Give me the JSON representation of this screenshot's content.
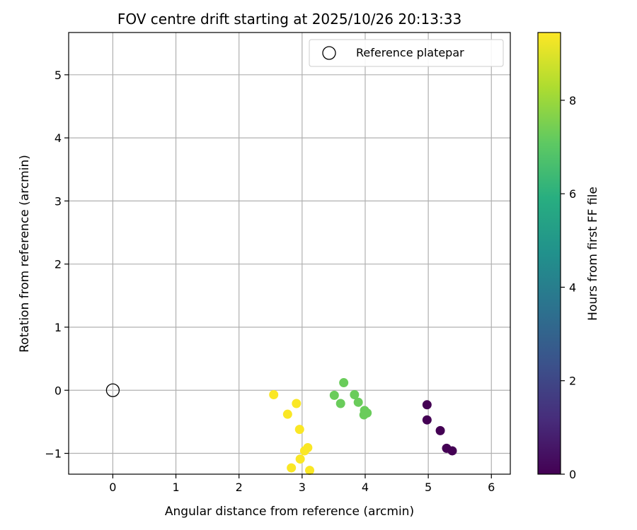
{
  "chart_data": {
    "type": "scatter",
    "title": "FOV centre drift starting at 2025/10/26 20:13:33",
    "xlabel": "Angular distance from reference (arcmin)",
    "ylabel": "Rotation from reference (arcmin)",
    "xlim": [
      -0.7,
      6.3
    ],
    "ylim": [
      -1.33,
      5.67
    ],
    "xticks": [
      0,
      1,
      2,
      3,
      4,
      5,
      6
    ],
    "yticks": [
      -1,
      0,
      1,
      2,
      3,
      4,
      5
    ],
    "xtick_labels": [
      "0",
      "1",
      "2",
      "3",
      "4",
      "5",
      "6"
    ],
    "ytick_labels": [
      "−1",
      "0",
      "1",
      "2",
      "3",
      "4",
      "5"
    ],
    "grid": true,
    "legend": {
      "position": "top-right",
      "entries": [
        {
          "label": "Reference platepar",
          "marker": "open-circle"
        }
      ]
    },
    "reference_point": {
      "name": "Reference platepar",
      "x": 0,
      "y": 0
    },
    "colorbar": {
      "label": "Hours from first FF file",
      "range": [
        0,
        9.45
      ],
      "ticks": [
        0,
        2,
        4,
        6,
        8
      ],
      "tick_labels": [
        "0",
        "2",
        "4",
        "6",
        "8"
      ],
      "colormap": "viridis"
    },
    "points": [
      {
        "x": 4.98,
        "y": -0.23,
        "hours": 0.0
      },
      {
        "x": 4.98,
        "y": -0.47,
        "hours": 0.0
      },
      {
        "x": 5.19,
        "y": -0.64,
        "hours": 0.0
      },
      {
        "x": 5.29,
        "y": -0.92,
        "hours": 0.0
      },
      {
        "x": 5.38,
        "y": -0.96,
        "hours": 0.0
      },
      {
        "x": 3.66,
        "y": 0.12,
        "hours": 7.3
      },
      {
        "x": 3.51,
        "y": -0.08,
        "hours": 7.3
      },
      {
        "x": 3.61,
        "y": -0.21,
        "hours": 7.3
      },
      {
        "x": 3.83,
        "y": -0.07,
        "hours": 7.3
      },
      {
        "x": 3.89,
        "y": -0.19,
        "hours": 7.3
      },
      {
        "x": 3.99,
        "y": -0.32,
        "hours": 7.3
      },
      {
        "x": 4.03,
        "y": -0.36,
        "hours": 7.3
      },
      {
        "x": 3.98,
        "y": -0.39,
        "hours": 7.3
      },
      {
        "x": 2.55,
        "y": -0.07,
        "hours": 9.4
      },
      {
        "x": 2.91,
        "y": -0.21,
        "hours": 9.4
      },
      {
        "x": 2.77,
        "y": -0.38,
        "hours": 9.4
      },
      {
        "x": 2.96,
        "y": -0.62,
        "hours": 9.4
      },
      {
        "x": 3.09,
        "y": -0.91,
        "hours": 9.4
      },
      {
        "x": 3.04,
        "y": -0.96,
        "hours": 9.4
      },
      {
        "x": 2.97,
        "y": -1.09,
        "hours": 9.4
      },
      {
        "x": 2.83,
        "y": -1.23,
        "hours": 9.4
      },
      {
        "x": 3.12,
        "y": -1.27,
        "hours": 9.4
      }
    ]
  }
}
